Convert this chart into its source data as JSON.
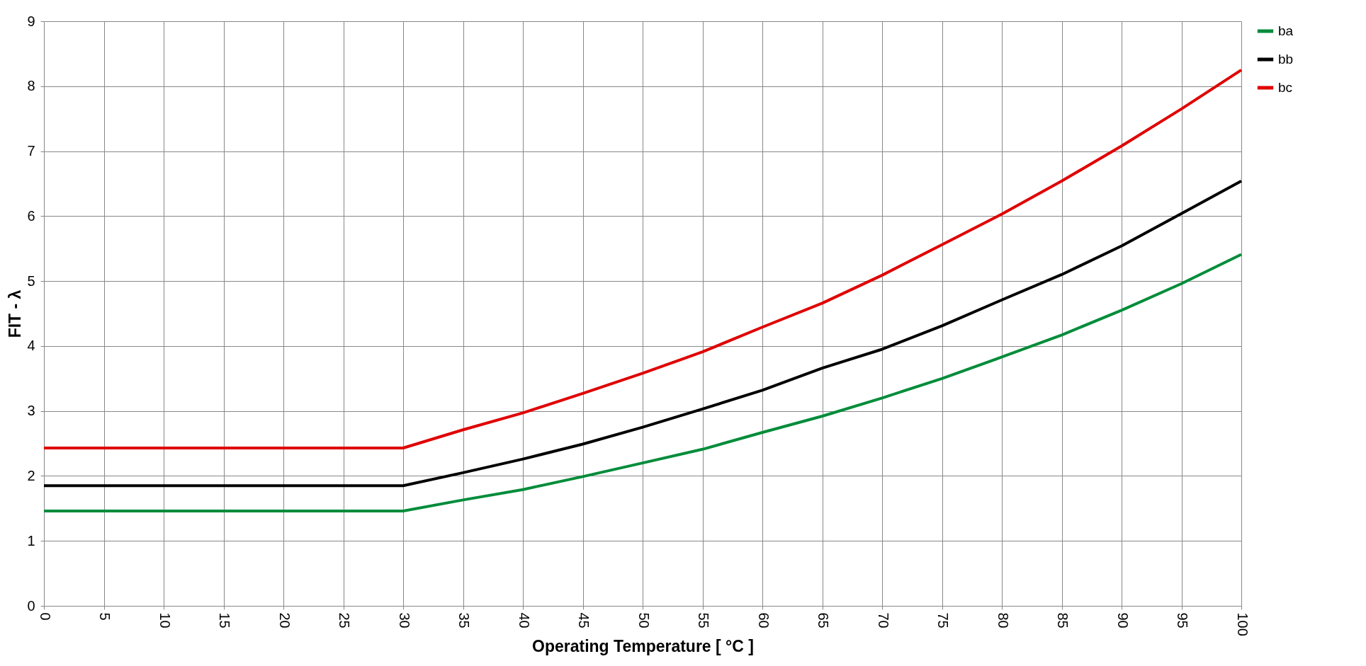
{
  "chart_data": {
    "type": "line",
    "xlabel": "Operating Temperature  [ °C ]",
    "ylabel": "FIT - λ",
    "x": [
      0,
      5,
      10,
      15,
      20,
      25,
      30,
      35,
      40,
      45,
      50,
      55,
      60,
      65,
      70,
      75,
      80,
      85,
      90,
      95,
      100
    ],
    "series": [
      {
        "name": "ba",
        "color": "#008c3a",
        "values": [
          1.46,
          1.46,
          1.46,
          1.46,
          1.46,
          1.46,
          1.46,
          1.63,
          1.79,
          1.99,
          2.2,
          2.41,
          2.67,
          2.92,
          3.2,
          3.5,
          3.83,
          4.17,
          4.55,
          4.96,
          5.41
        ]
      },
      {
        "name": "bb",
        "color": "#000000",
        "values": [
          1.85,
          1.85,
          1.85,
          1.85,
          1.85,
          1.85,
          1.85,
          2.05,
          2.26,
          2.49,
          2.75,
          3.03,
          3.32,
          3.66,
          3.95,
          4.31,
          4.71,
          5.1,
          5.54,
          6.04,
          6.54
        ]
      },
      {
        "name": "bc",
        "color": "#e00000",
        "values": [
          2.43,
          2.43,
          2.43,
          2.43,
          2.43,
          2.43,
          2.43,
          2.71,
          2.97,
          3.27,
          3.58,
          3.91,
          4.29,
          4.66,
          5.09,
          5.56,
          6.03,
          6.54,
          7.08,
          7.65,
          8.25
        ]
      }
    ],
    "xlim": [
      0,
      100
    ],
    "xticks": [
      0,
      5,
      10,
      15,
      20,
      25,
      30,
      35,
      40,
      45,
      50,
      55,
      60,
      65,
      70,
      75,
      80,
      85,
      90,
      95,
      100
    ],
    "ylim": [
      0,
      9
    ],
    "yticks": [
      0,
      1,
      2,
      3,
      4,
      5,
      6,
      7,
      8,
      9
    ],
    "grid": true,
    "legend": "right",
    "marker": "none",
    "line_style": "solid"
  }
}
